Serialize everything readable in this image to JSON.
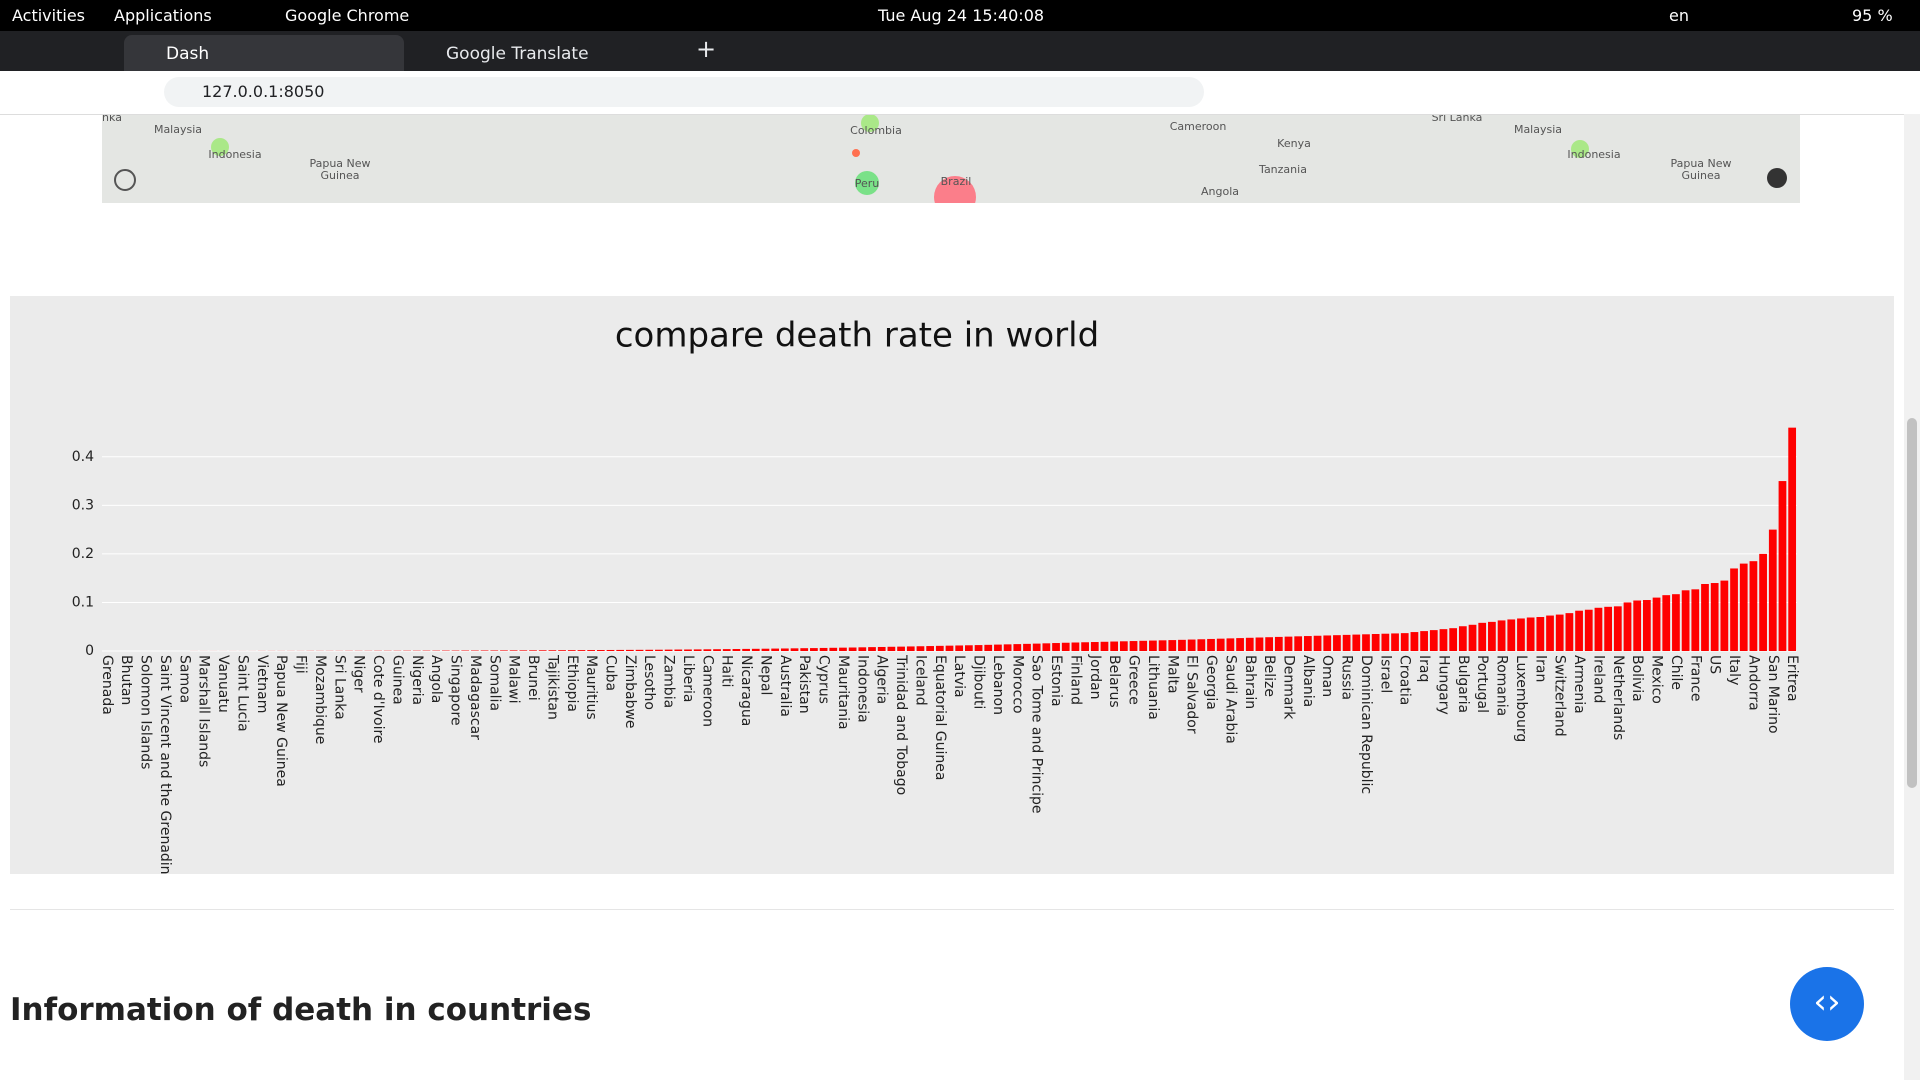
{
  "topbar": {
    "activities": "Activities",
    "applications": "Applications",
    "app": "Google Chrome",
    "clock": "Tue Aug 24  15:40:08",
    "lang": "en",
    "battery": "95 %"
  },
  "tabs": [
    "Dash",
    "Google Translate"
  ],
  "url": "127.0.0.1:8050",
  "map_labels": [
    "nka",
    "Malaysia",
    "Indonesia",
    "Papua New Guinea",
    "Colombia",
    "Peru",
    "Brazil",
    "Cameroon",
    "Kenya",
    "Tanzania",
    "Angola",
    "Sri Lanka",
    "Malaysia",
    "Indonesia",
    "Papua New Guinea"
  ],
  "chart_data": {
    "type": "bar",
    "title": "compare death rate in world",
    "categories": [
      "Grenada",
      null,
      "Bhutan",
      null,
      "Solomon Islands",
      null,
      "Saint Vincent and the Grenadines",
      null,
      "Samoa",
      null,
      "Marshall Islands",
      null,
      "Vanuatu",
      null,
      "Saint Lucia",
      null,
      "Vietnam",
      null,
      "Papua New Guinea",
      null,
      "Fiji",
      null,
      "Mozambique",
      null,
      "Sri Lanka",
      null,
      "Niger",
      null,
      "Cote d'Ivoire",
      null,
      "Guinea",
      null,
      "Nigeria",
      null,
      "Angola",
      null,
      "Singapore",
      null,
      "Madagascar",
      null,
      "Somalia",
      null,
      "Malawi",
      null,
      "Brunei",
      null,
      "Tajikistan",
      null,
      "Ethiopia",
      null,
      "Mauritius",
      null,
      "Cuba",
      null,
      "Zimbabwe",
      null,
      "Lesotho",
      null,
      "Zambia",
      null,
      "Liberia",
      null,
      "Cameroon",
      null,
      "Haiti",
      null,
      "Nicaragua",
      null,
      "Nepal",
      null,
      "Australia",
      null,
      "Pakistan",
      null,
      "Cyprus",
      null,
      "Mauritania",
      null,
      "Indonesia",
      null,
      "Algeria",
      null,
      "Trinidad and Tobago",
      null,
      "Iceland",
      null,
      "Equatorial Guinea",
      null,
      "Latvia",
      null,
      "Djibouti",
      null,
      "Lebanon",
      null,
      "Morocco",
      null,
      "Sao Tome and Principe",
      null,
      "Estonia",
      null,
      "Finland",
      null,
      "Jordan",
      null,
      "Belarus",
      null,
      "Greece",
      null,
      "Lithuania",
      null,
      "Malta",
      null,
      "El Salvador",
      null,
      "Georgia",
      null,
      "Saudi Arabia",
      null,
      "Bahrain",
      null,
      "Belize",
      null,
      "Denmark",
      null,
      "Albania",
      null,
      "Oman",
      null,
      "Russia",
      null,
      "Dominican Republic",
      null,
      "Israel",
      null,
      "Croatia",
      null,
      "Iraq",
      null,
      "Hungary",
      null,
      "Bulgaria",
      null,
      "Portugal",
      null,
      "Romania",
      null,
      "Luxembourg",
      null,
      "Iran",
      null,
      "Switzerland",
      null,
      "Armenia",
      null,
      "Ireland",
      null,
      "Netherlands",
      null,
      "Bolivia",
      null,
      "Mexico",
      null,
      "Chile",
      null,
      "France",
      null,
      "US",
      null,
      "Italy",
      null,
      "Andorra",
      null,
      "San Marino",
      null,
      "Eritrea"
    ],
    "values": [
      0,
      0,
      0,
      0,
      0,
      0,
      0,
      0,
      0,
      0.0001,
      0.0001,
      0.0001,
      0.0001,
      0.0001,
      0.0001,
      0.0001,
      0.0002,
      0.0002,
      0.0002,
      0.0002,
      0.0002,
      0.0003,
      0.0003,
      0.0003,
      0.0003,
      0.0004,
      0.0004,
      0.0004,
      0.0005,
      0.0005,
      0.0005,
      0.0006,
      0.0006,
      0.0007,
      0.0007,
      0.0008,
      0.0008,
      0.0009,
      0.0009,
      0.001,
      0.001,
      0.0011,
      0.0012,
      0.0012,
      0.0013,
      0.0014,
      0.0015,
      0.0016,
      0.0017,
      0.0018,
      0.0019,
      0.002,
      0.0021,
      0.0022,
      0.0023,
      0.0024,
      0.0025,
      0.0026,
      0.0028,
      0.003,
      0.0031,
      0.0033,
      0.0035,
      0.0037,
      0.0039,
      0.0041,
      0.0043,
      0.0045,
      0.0047,
      0.005,
      0.0052,
      0.0055,
      0.0058,
      0.006,
      0.0063,
      0.0066,
      0.0069,
      0.0072,
      0.0076,
      0.008,
      0.0083,
      0.0087,
      0.009,
      0.0094,
      0.0098,
      0.0102,
      0.0106,
      0.011,
      0.0114,
      0.0118,
      0.0122,
      0.0127,
      0.0132,
      0.0137,
      0.0142,
      0.0147,
      0.0152,
      0.0158,
      0.0164,
      0.017,
      0.0175,
      0.018,
      0.0185,
      0.019,
      0.0195,
      0.02,
      0.0205,
      0.021,
      0.0215,
      0.022,
      0.0225,
      0.023,
      0.0236,
      0.0242,
      0.0248,
      0.0254,
      0.026,
      0.0266,
      0.0272,
      0.0278,
      0.0284,
      0.029,
      0.0296,
      0.0302,
      0.0308,
      0.0314,
      0.032,
      0.0326,
      0.0332,
      0.0338,
      0.0344,
      0.035,
      0.0356,
      0.0362,
      0.0368,
      0.039,
      0.041,
      0.043,
      0.045,
      0.047,
      0.051,
      0.054,
      0.058,
      0.06,
      0.063,
      0.065,
      0.067,
      0.069,
      0.07,
      0.073,
      0.075,
      0.078,
      0.083,
      0.085,
      0.089,
      0.091,
      0.092,
      0.1,
      0.104,
      0.105,
      0.11,
      0.115,
      0.117,
      0.125,
      0.127,
      0.138,
      0.14,
      0.145,
      0.17,
      0.18,
      0.185,
      0.2,
      0.25,
      0.35,
      0.46
    ],
    "color": "#ff0000",
    "ylim": [
      0,
      0.484
    ],
    "yticks": [
      0,
      0.1,
      0.2,
      0.3,
      0.4
    ],
    "grid": true
  },
  "heading": "Information of death in countries"
}
